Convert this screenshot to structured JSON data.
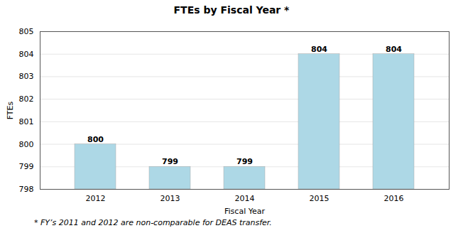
{
  "chart_data": {
    "type": "bar",
    "title": "FTEs by Fiscal Year *",
    "xlabel": "Fiscal Year",
    "ylabel": "FTEs",
    "footnote": "* FY’s 2011 and 2012 are non-comparable for DEAS transfer.",
    "categories": [
      "2012",
      "2013",
      "2014",
      "2015",
      "2016"
    ],
    "values": [
      800,
      799,
      799,
      804,
      804
    ],
    "color": "#add8e6",
    "ylim": [
      798,
      805
    ],
    "yticks": [
      798,
      799,
      800,
      801,
      802,
      803,
      804,
      805
    ],
    "grid": true,
    "data_labels": true
  }
}
